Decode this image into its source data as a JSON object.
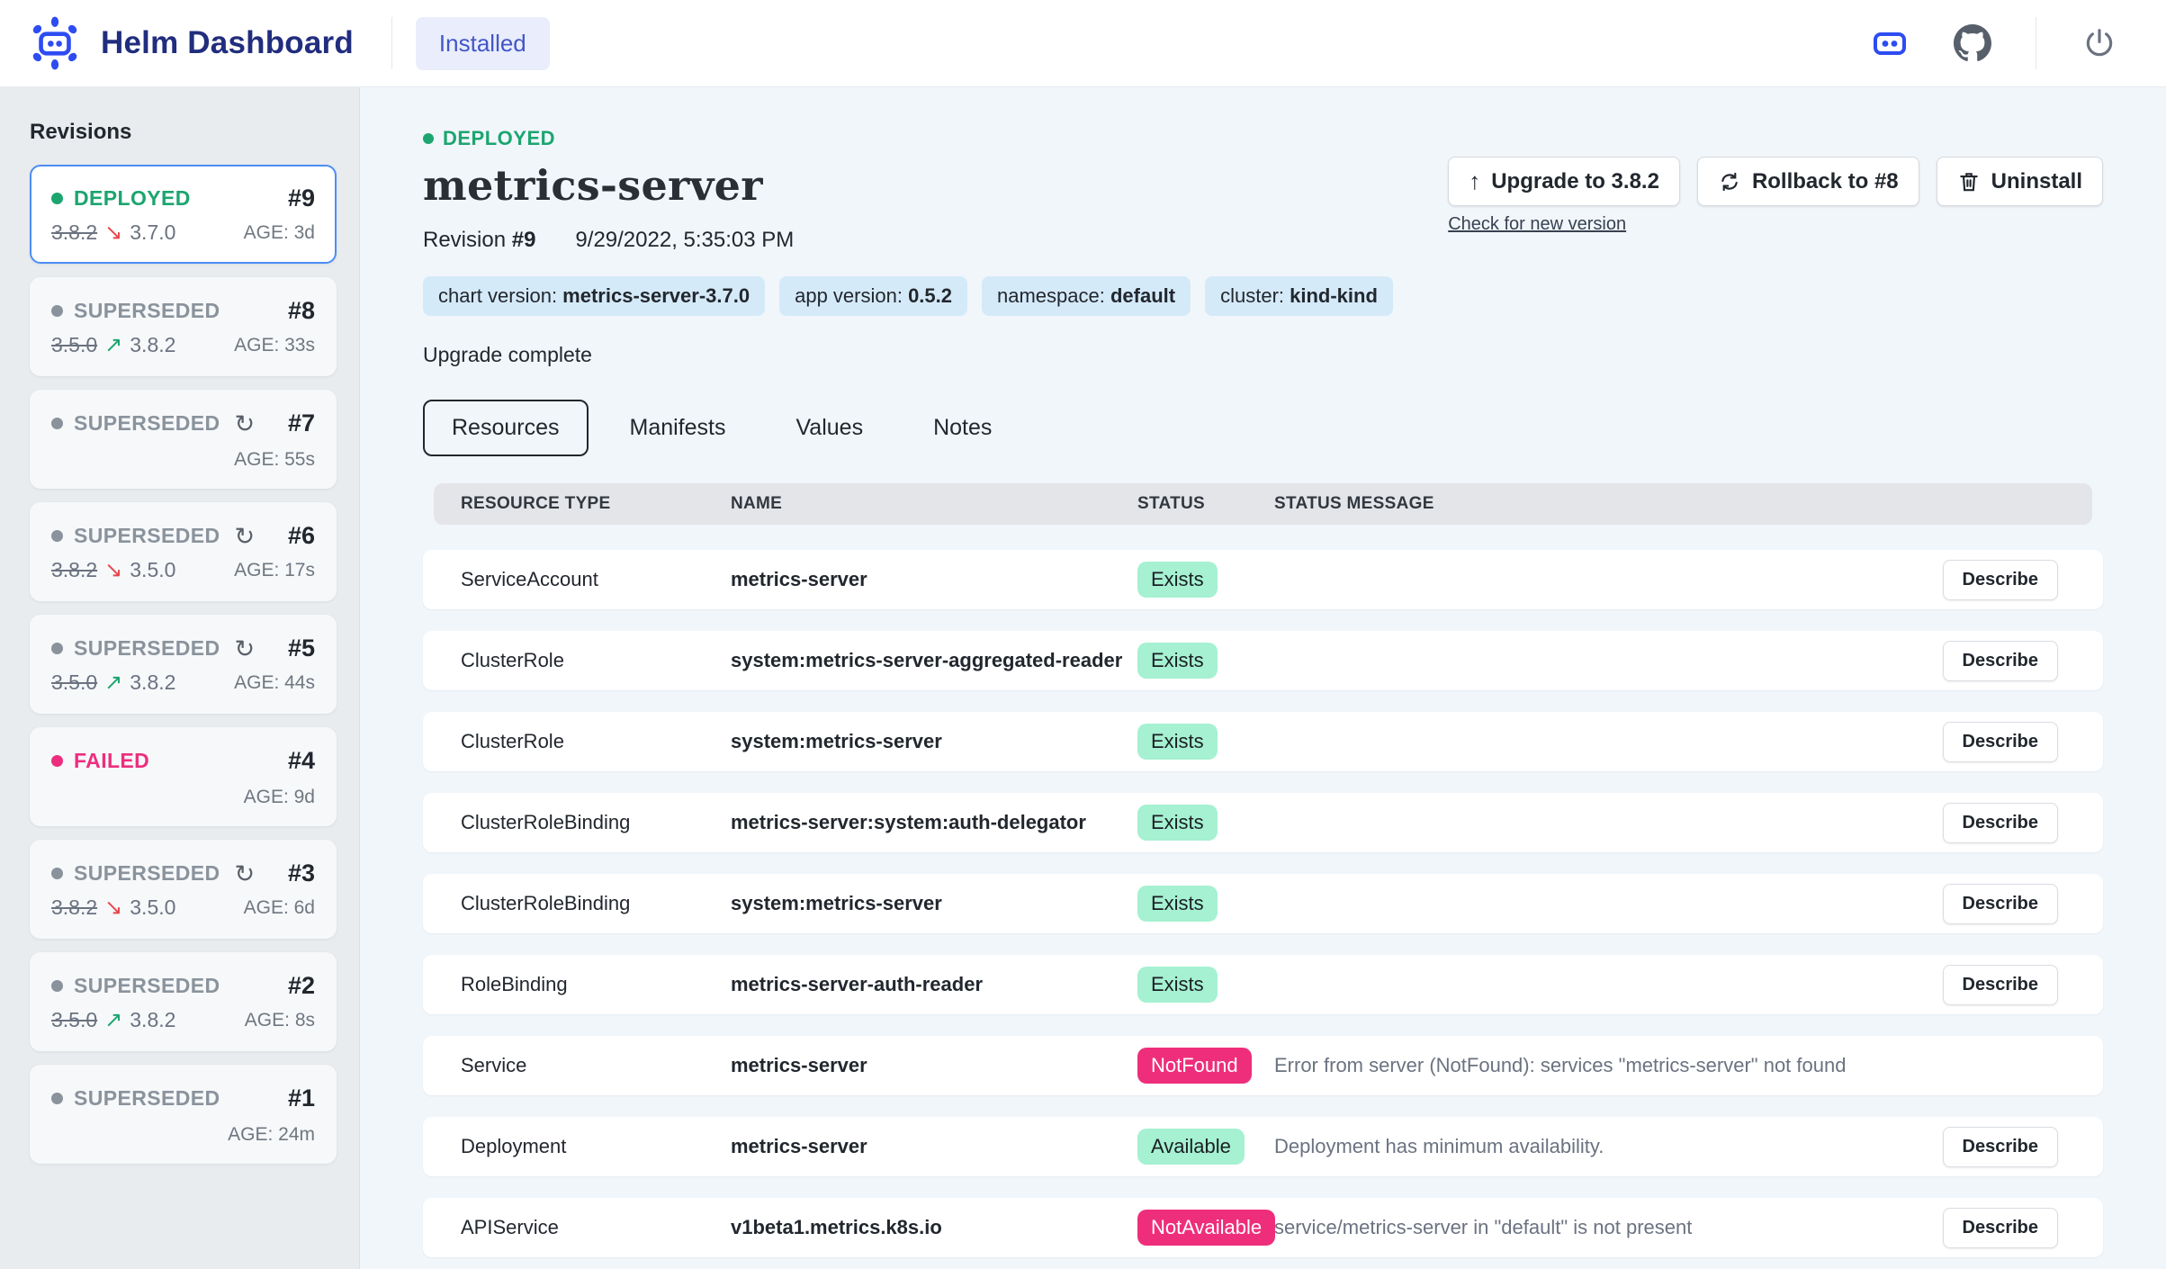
{
  "header": {
    "app_title": "Helm Dashboard",
    "installed_label": "Installed",
    "icons": {
      "logo": "robot-burst",
      "clusters": "robot-face",
      "github": "github-mark",
      "power": "power-symbol"
    }
  },
  "sidebar": {
    "title": "Revisions",
    "revisions": [
      {
        "number": "#9",
        "status": "DEPLOYED",
        "state": "deployed",
        "active": true,
        "reconfigured": false,
        "version_from": "3.8.2",
        "version_to": "3.7.0",
        "trend": "down",
        "age": "AGE: 3d"
      },
      {
        "number": "#8",
        "status": "SUPERSEDED",
        "state": "superseded",
        "active": false,
        "reconfigured": false,
        "version_from": "3.5.0",
        "version_to": "3.8.2",
        "trend": "up",
        "age": "AGE: 33s"
      },
      {
        "number": "#7",
        "status": "SUPERSEDED",
        "state": "superseded",
        "active": false,
        "reconfigured": true,
        "version_from": "",
        "version_to": "",
        "trend": "",
        "age": "AGE: 55s"
      },
      {
        "number": "#6",
        "status": "SUPERSEDED",
        "state": "superseded",
        "active": false,
        "reconfigured": true,
        "version_from": "3.8.2",
        "version_to": "3.5.0",
        "trend": "down",
        "age": "AGE: 17s"
      },
      {
        "number": "#5",
        "status": "SUPERSEDED",
        "state": "superseded",
        "active": false,
        "reconfigured": true,
        "version_from": "3.5.0",
        "version_to": "3.8.2",
        "trend": "up",
        "age": "AGE: 44s"
      },
      {
        "number": "#4",
        "status": "FAILED",
        "state": "failed",
        "active": false,
        "reconfigured": false,
        "version_from": "",
        "version_to": "",
        "trend": "",
        "age": "AGE: 9d"
      },
      {
        "number": "#3",
        "status": "SUPERSEDED",
        "state": "superseded",
        "active": false,
        "reconfigured": true,
        "version_from": "3.8.2",
        "version_to": "3.5.0",
        "trend": "down",
        "age": "AGE: 6d"
      },
      {
        "number": "#2",
        "status": "SUPERSEDED",
        "state": "superseded",
        "active": false,
        "reconfigured": false,
        "version_from": "3.5.0",
        "version_to": "3.8.2",
        "trend": "up",
        "age": "AGE: 8s"
      },
      {
        "number": "#1",
        "status": "SUPERSEDED",
        "state": "superseded",
        "active": false,
        "reconfigured": false,
        "version_from": "",
        "version_to": "",
        "trend": "",
        "age": "AGE: 24m"
      }
    ]
  },
  "main": {
    "deployed_status": "DEPLOYED",
    "title": "metrics-server",
    "revision_label": "Revision",
    "revision_number": "#9",
    "timestamp": "9/29/2022, 5:35:03 PM",
    "actions": {
      "upgrade_label": "Upgrade to 3.8.2",
      "upgrade_icon": "↑",
      "rollback_label": "Rollback to #8",
      "uninstall_label": "Uninstall",
      "check_link": "Check for new version"
    },
    "chips": [
      {
        "label": "chart version: ",
        "value": "metrics-server-3.7.0"
      },
      {
        "label": "app version: ",
        "value": "0.5.2"
      },
      {
        "label": "namespace: ",
        "value": "default"
      },
      {
        "label": "cluster: ",
        "value": "kind-kind"
      }
    ],
    "status_note": "Upgrade complete",
    "tabs": [
      {
        "label": "Resources",
        "active": true
      },
      {
        "label": "Manifests",
        "active": false
      },
      {
        "label": "Values",
        "active": false
      },
      {
        "label": "Notes",
        "active": false
      }
    ],
    "table": {
      "columns": [
        "RESOURCE TYPE",
        "NAME",
        "STATUS",
        "STATUS MESSAGE"
      ],
      "describe_label": "Describe",
      "rows": [
        {
          "type": "ServiceAccount",
          "name": "metrics-server",
          "status": "Exists",
          "status_kind": "ok",
          "message": "",
          "describe": true
        },
        {
          "type": "ClusterRole",
          "name": "system:metrics-server-aggregated-reader",
          "status": "Exists",
          "status_kind": "ok",
          "message": "",
          "describe": true
        },
        {
          "type": "ClusterRole",
          "name": "system:metrics-server",
          "status": "Exists",
          "status_kind": "ok",
          "message": "",
          "describe": true
        },
        {
          "type": "ClusterRoleBinding",
          "name": "metrics-server:system:auth-delegator",
          "status": "Exists",
          "status_kind": "ok",
          "message": "",
          "describe": true
        },
        {
          "type": "ClusterRoleBinding",
          "name": "system:metrics-server",
          "status": "Exists",
          "status_kind": "ok",
          "message": "",
          "describe": true
        },
        {
          "type": "RoleBinding",
          "name": "metrics-server-auth-reader",
          "status": "Exists",
          "status_kind": "ok",
          "message": "",
          "describe": true
        },
        {
          "type": "Service",
          "name": "metrics-server",
          "status": "NotFound",
          "status_kind": "err",
          "message": "Error from server (NotFound): services \"metrics-server\" not found",
          "describe": false
        },
        {
          "type": "Deployment",
          "name": "metrics-server",
          "status": "Available",
          "status_kind": "ok",
          "message": "Deployment has minimum availability.",
          "describe": true
        },
        {
          "type": "APIService",
          "name": "v1beta1.metrics.k8s.io",
          "status": "NotAvailable",
          "status_kind": "err",
          "message": "service/metrics-server in \"default\" is not present",
          "describe": true
        }
      ]
    }
  },
  "glyphs": {
    "reconfigure_icon": "↻",
    "trend_up_icon": "↗",
    "trend_down_icon": "↘"
  },
  "colors": {
    "brand_blue": "#2d4cf2",
    "title_navy": "#212d7d",
    "accent_active_border": "#4c8df6",
    "deployed_green": "#1ca56f",
    "superseded_gray": "#8a939c",
    "failed_pink": "#ed2e7e",
    "chip_bg": "#d5eaf9",
    "ok_badge_bg": "#a5f1d2",
    "err_badge_bg": "#ee2e7b",
    "sidebar_bg": "#e9ecef",
    "main_bg": "#f1f6fa",
    "table_head_bg": "#e4e5e8"
  }
}
